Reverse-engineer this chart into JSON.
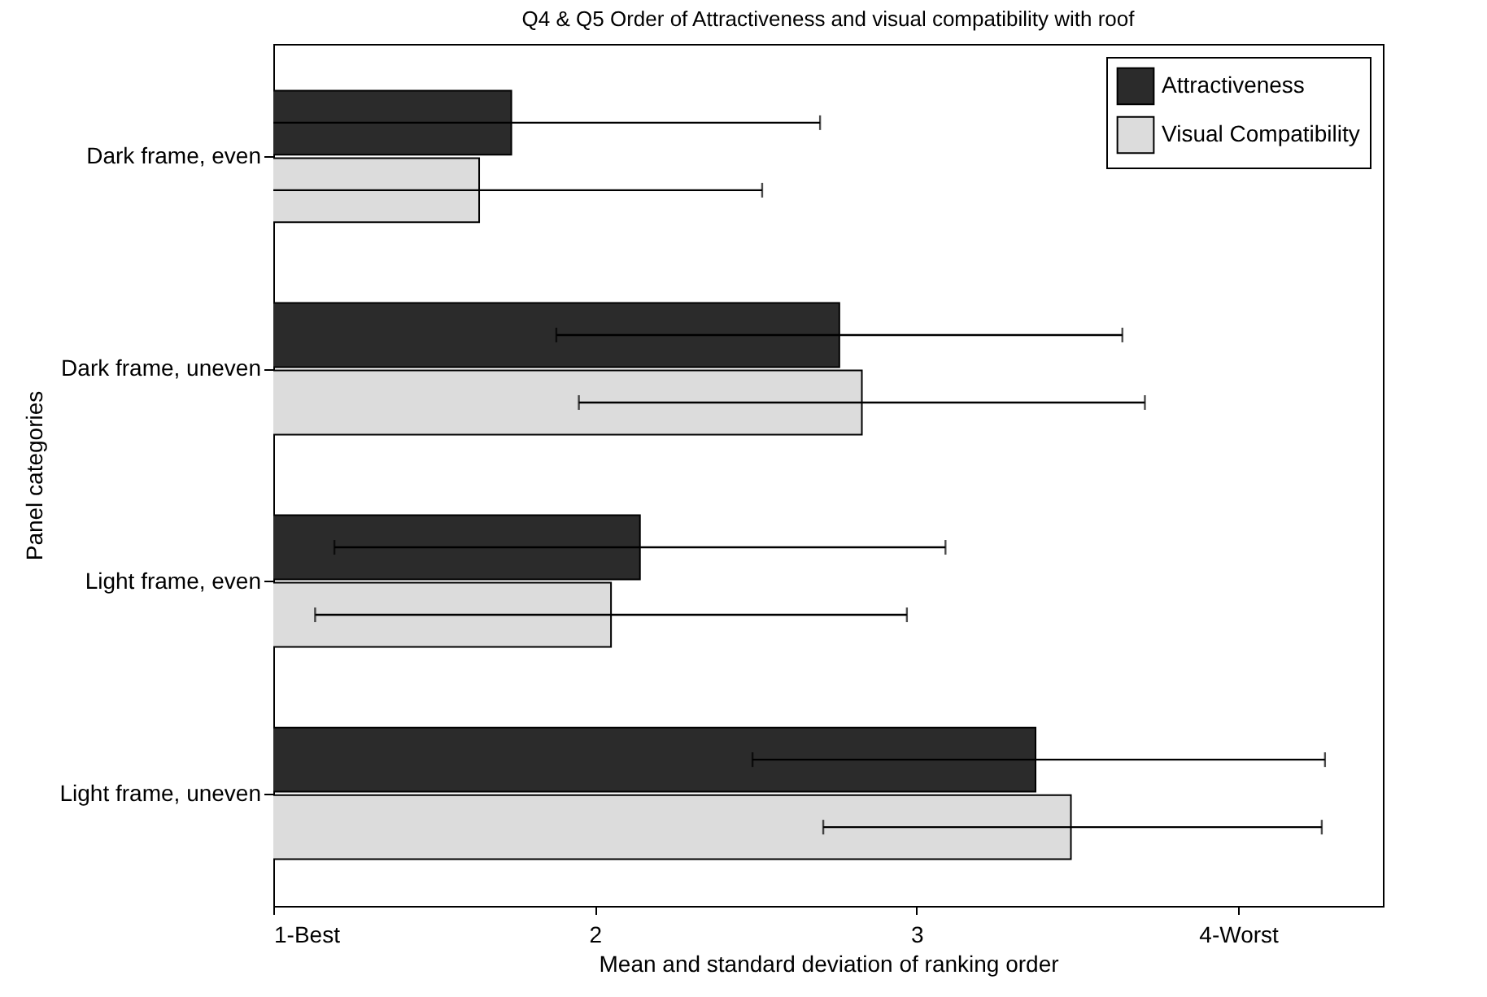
{
  "chart_data": {
    "type": "bar",
    "orientation": "horizontal",
    "title": "Q4 & Q5 Order of Attractiveness and visual compatibility with roof",
    "xlabel": "Mean and standard deviation of ranking order",
    "ylabel": "Panel categories",
    "categories": [
      "Dark frame, even",
      "Dark frame, uneven",
      "Light frame, even",
      "Light frame, uneven"
    ],
    "series": [
      {
        "name": "Attractiveness",
        "color": "#2b2b2b",
        "values": [
          1.74,
          2.76,
          2.14,
          3.37
        ],
        "errors": [
          [
            1,
            2.7
          ],
          [
            1.88,
            3.64
          ],
          [
            1.19,
            3.09
          ],
          [
            2.49,
            4.27
          ]
        ]
      },
      {
        "name": "Visual Compatibility",
        "color": "#dcdcdc",
        "values": [
          1.64,
          2.83,
          2.05,
          3.48
        ],
        "errors": [
          [
            1,
            2.52
          ],
          [
            1.95,
            3.71
          ],
          [
            1.13,
            2.97
          ],
          [
            2.71,
            4.26
          ]
        ]
      }
    ],
    "xlim": [
      1,
      4.45
    ],
    "xticks": [
      {
        "value": 1,
        "label": "1-Best"
      },
      2,
      3,
      {
        "value": 4,
        "label": "4-Worst"
      }
    ],
    "legend": "top right",
    "grid": false
  }
}
